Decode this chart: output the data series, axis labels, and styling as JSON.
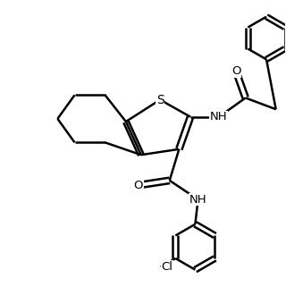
{
  "bg_color": "#ffffff",
  "line_color": "#000000",
  "line_width": 1.8,
  "figsize": [
    3.2,
    3.4
  ],
  "dpi": 100,
  "xlim": [
    -1.0,
    9.0
  ],
  "ylim": [
    -0.5,
    9.5
  ]
}
